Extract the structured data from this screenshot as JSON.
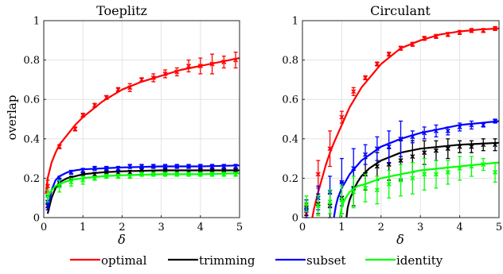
{
  "chart_data": [
    {
      "type": "line",
      "title": "Toeplitz",
      "xlabel": "δ",
      "ylabel": "overlap",
      "xlim": [
        0,
        5
      ],
      "ylim": [
        0,
        1
      ],
      "xticks": [
        "0",
        "1",
        "2",
        "3",
        "4",
        "5"
      ],
      "yticks": [
        "0",
        "0.2",
        "0.4",
        "0.6",
        "0.8",
        "1"
      ],
      "grid": true,
      "series": [
        {
          "name": "optimal",
          "color": "#ff0000",
          "curve": {
            "x": [
              0.05,
              0.1,
              0.2,
              0.3,
              0.4,
              0.6,
              0.8,
              1.0,
              1.25,
              1.5,
              1.75,
              2.0,
              2.5,
              3.0,
              3.5,
              4.0,
              4.5,
              5.0
            ],
            "y": [
              0.12,
              0.2,
              0.28,
              0.33,
              0.37,
              0.42,
              0.47,
              0.51,
              0.55,
              0.59,
              0.62,
              0.65,
              0.69,
              0.72,
              0.75,
              0.77,
              0.79,
              0.81
            ]
          },
          "points": {
            "x": [
              0.1,
              0.4,
              0.8,
              1.0,
              1.3,
              1.6,
              1.9,
              2.2,
              2.5,
              2.8,
              3.1,
              3.4,
              3.7,
              4.0,
              4.3,
              4.6,
              4.9
            ],
            "y": [
              0.16,
              0.36,
              0.45,
              0.52,
              0.57,
              0.61,
              0.65,
              0.66,
              0.7,
              0.71,
              0.73,
              0.74,
              0.77,
              0.77,
              0.78,
              0.79,
              0.8
            ],
            "err": [
              0.03,
              0.01,
              0.01,
              0.01,
              0.01,
              0.01,
              0.01,
              0.02,
              0.01,
              0.02,
              0.02,
              0.02,
              0.03,
              0.04,
              0.05,
              0.03,
              0.04
            ]
          }
        },
        {
          "name": "trimming",
          "color": "#000000",
          "curve": {
            "x": [
              0.1,
              0.2,
              0.3,
              0.4,
              0.6,
              0.8,
              1.0,
              1.5,
              2.0,
              3.0,
              4.0,
              5.0
            ],
            "y": [
              0.02,
              0.1,
              0.15,
              0.18,
              0.2,
              0.21,
              0.22,
              0.23,
              0.235,
              0.24,
              0.24,
              0.24
            ]
          },
          "points": {
            "x": [
              0.1,
              0.4,
              0.7,
              1.0,
              1.3,
              1.6,
              1.9,
              2.2,
              2.5,
              2.8,
              3.1,
              3.4,
              3.7,
              4.0,
              4.3,
              4.6,
              4.9
            ],
            "y": [
              0.06,
              0.18,
              0.2,
              0.22,
              0.22,
              0.23,
              0.23,
              0.23,
              0.24,
              0.23,
              0.24,
              0.23,
              0.23,
              0.24,
              0.24,
              0.24,
              0.24
            ],
            "err": [
              0.02,
              0.02,
              0.01,
              0.01,
              0.01,
              0.01,
              0.01,
              0.01,
              0.01,
              0.01,
              0.01,
              0.01,
              0.01,
              0.01,
              0.01,
              0.01,
              0.01
            ]
          }
        },
        {
          "name": "subset",
          "color": "#0000ff",
          "curve": {
            "x": [
              0.1,
              0.2,
              0.3,
              0.4,
              0.6,
              0.8,
              1.0,
              1.5,
              2.0,
              3.0,
              4.0,
              5.0
            ],
            "y": [
              0.04,
              0.14,
              0.19,
              0.21,
              0.23,
              0.24,
              0.245,
              0.25,
              0.255,
              0.26,
              0.26,
              0.265
            ]
          },
          "points": {
            "x": [
              0.1,
              0.4,
              0.7,
              1.0,
              1.3,
              1.6,
              1.9,
              2.2,
              2.5,
              2.8,
              3.1,
              3.4,
              3.7,
              4.0,
              4.3,
              4.6,
              4.9
            ],
            "y": [
              0.08,
              0.19,
              0.23,
              0.24,
              0.25,
              0.25,
              0.25,
              0.26,
              0.26,
              0.26,
              0.26,
              0.26,
              0.26,
              0.26,
              0.26,
              0.26,
              0.26
            ],
            "err": [
              0.03,
              0.02,
              0.01,
              0.01,
              0.01,
              0.01,
              0.01,
              0.01,
              0.01,
              0.01,
              0.01,
              0.01,
              0.01,
              0.01,
              0.01,
              0.01,
              0.01
            ]
          }
        },
        {
          "name": "identity",
          "color": "#00ff00",
          "curve": {
            "x": [
              0.1,
              0.2,
              0.3,
              0.4,
              0.6,
              0.8,
              1.0,
              1.5,
              2.0,
              3.0,
              4.0,
              5.0
            ],
            "y": [
              0.1,
              0.14,
              0.16,
              0.17,
              0.185,
              0.195,
              0.2,
              0.21,
              0.215,
              0.22,
              0.22,
              0.225
            ]
          },
          "points": {
            "x": [
              0.1,
              0.4,
              0.7,
              1.0,
              1.3,
              1.6,
              1.9,
              2.2,
              2.5,
              2.8,
              3.1,
              3.4,
              3.7,
              4.0,
              4.3,
              4.6,
              4.9
            ],
            "y": [
              0.11,
              0.16,
              0.18,
              0.19,
              0.2,
              0.21,
              0.21,
              0.21,
              0.22,
              0.22,
              0.22,
              0.22,
              0.22,
              0.22,
              0.22,
              0.22,
              0.22
            ],
            "err": [
              0.03,
              0.03,
              0.02,
              0.02,
              0.01,
              0.01,
              0.01,
              0.01,
              0.01,
              0.01,
              0.01,
              0.01,
              0.01,
              0.01,
              0.01,
              0.01,
              0.01
            ]
          }
        }
      ]
    },
    {
      "type": "line",
      "title": "Circulant",
      "xlabel": "δ",
      "ylabel": "",
      "xlim": [
        0,
        5
      ],
      "ylim": [
        0,
        1
      ],
      "xticks": [
        "0",
        "1",
        "2",
        "3",
        "4",
        "5"
      ],
      "yticks": [
        "0",
        "0.2",
        "0.4",
        "0.6",
        "0.8",
        "1"
      ],
      "grid": true,
      "series": [
        {
          "name": "optimal",
          "color": "#ff0000",
          "curve": {
            "x": [
              0.25,
              0.3,
              0.4,
              0.5,
              0.6,
              0.7,
              0.8,
              1.0,
              1.2,
              1.5,
              2.0,
              2.5,
              3.0,
              3.5,
              4.0,
              4.5,
              5.0
            ],
            "y": [
              0.0,
              0.05,
              0.13,
              0.2,
              0.27,
              0.33,
              0.38,
              0.47,
              0.56,
              0.66,
              0.78,
              0.86,
              0.9,
              0.93,
              0.945,
              0.955,
              0.96
            ]
          },
          "points": {
            "x": [
              0.1,
              0.4,
              0.7,
              1.0,
              1.3,
              1.6,
              1.9,
              2.2,
              2.5,
              2.8,
              3.1,
              3.4,
              3.7,
              4.0,
              4.3,
              4.6,
              4.9
            ],
            "y": [
              0.02,
              0.22,
              0.35,
              0.51,
              0.64,
              0.71,
              0.78,
              0.83,
              0.86,
              0.88,
              0.91,
              0.92,
              0.93,
              0.94,
              0.95,
              0.95,
              0.96
            ],
            "err": [
              0.05,
              0.07,
              0.09,
              0.03,
              0.02,
              0.01,
              0.01,
              0.01,
              0.01,
              0.01,
              0.01,
              0.01,
              0.01,
              0.01,
              0.01,
              0.01,
              0.01
            ]
          }
        },
        {
          "name": "trimming",
          "color": "#000000",
          "curve": {
            "x": [
              1.12,
              1.15,
              1.2,
              1.3,
              1.4,
              1.5,
              1.7,
              2.0,
              2.5,
              3.0,
              3.5,
              4.0,
              4.5,
              5.0
            ],
            "y": [
              0.0,
              0.05,
              0.09,
              0.14,
              0.18,
              0.21,
              0.25,
              0.29,
              0.33,
              0.35,
              0.36,
              0.37,
              0.375,
              0.38
            ]
          },
          "points": {
            "x": [
              0.1,
              0.4,
              0.7,
              1.0,
              1.3,
              1.6,
              1.9,
              2.2,
              2.5,
              2.8,
              3.1,
              3.4,
              3.7,
              4.0,
              4.3,
              4.6,
              4.9
            ],
            "y": [
              0.05,
              0.07,
              0.06,
              0.1,
              0.15,
              0.22,
              0.26,
              0.27,
              0.29,
              0.31,
              0.33,
              0.34,
              0.35,
              0.36,
              0.36,
              0.37,
              0.37
            ],
            "err": [
              0.04,
              0.05,
              0.06,
              0.08,
              0.09,
              0.08,
              0.07,
              0.08,
              0.1,
              0.08,
              0.06,
              0.05,
              0.05,
              0.03,
              0.03,
              0.03,
              0.03
            ]
          }
        },
        {
          "name": "subset",
          "color": "#0000ff",
          "curve": {
            "x": [
              0.8,
              0.85,
              0.9,
              1.0,
              1.2,
              1.5,
              2.0,
              2.5,
              3.0,
              3.5,
              4.0,
              4.5,
              5.0
            ],
            "y": [
              0.0,
              0.06,
              0.1,
              0.15,
              0.22,
              0.29,
              0.36,
              0.4,
              0.43,
              0.45,
              0.47,
              0.48,
              0.49
            ]
          },
          "points": {
            "x": [
              0.1,
              0.4,
              0.7,
              1.0,
              1.3,
              1.6,
              1.9,
              2.2,
              2.5,
              2.8,
              3.1,
              3.4,
              3.7,
              4.0,
              4.3,
              4.6,
              4.9
            ],
            "y": [
              0.04,
              0.1,
              0.13,
              0.18,
              0.25,
              0.32,
              0.35,
              0.36,
              0.4,
              0.41,
              0.43,
              0.44,
              0.44,
              0.46,
              0.47,
              0.47,
              0.49
            ],
            "err": [
              0.05,
              0.06,
              0.08,
              0.12,
              0.1,
              0.05,
              0.06,
              0.08,
              0.09,
              0.03,
              0.03,
              0.03,
              0.02,
              0.02,
              0.02,
              0.01,
              0.01
            ]
          }
        },
        {
          "name": "identity",
          "color": "#00ff00",
          "curve": {
            "x": [
              0.95,
              1.0,
              1.05,
              1.1,
              1.2,
              1.4,
              1.6,
              2.0,
              2.5,
              3.0,
              3.5,
              4.0,
              4.5,
              5.0
            ],
            "y": [
              0.0,
              0.05,
              0.08,
              0.1,
              0.13,
              0.16,
              0.17,
              0.2,
              0.22,
              0.24,
              0.25,
              0.26,
              0.27,
              0.28
            ]
          },
          "points": {
            "x": [
              0.1,
              0.4,
              0.7,
              1.0,
              1.3,
              1.6,
              1.9,
              2.2,
              2.5,
              2.8,
              3.1,
              3.4,
              3.7,
              4.0,
              4.3,
              4.6,
              4.9
            ],
            "y": [
              0.07,
              0.06,
              0.08,
              0.09,
              0.13,
              0.15,
              0.14,
              0.17,
              0.19,
              0.2,
              0.22,
              0.22,
              0.23,
              0.25,
              0.26,
              0.27,
              0.23
            ],
            "err": [
              0.04,
              0.05,
              0.06,
              0.07,
              0.08,
              0.07,
              0.07,
              0.07,
              0.08,
              0.08,
              0.08,
              0.07,
              0.06,
              0.06,
              0.05,
              0.03,
              0.05
            ]
          }
        }
      ]
    }
  ],
  "legend": {
    "placement": "bottom",
    "items": [
      "optimal",
      "trimming",
      "subset",
      "identity"
    ]
  }
}
